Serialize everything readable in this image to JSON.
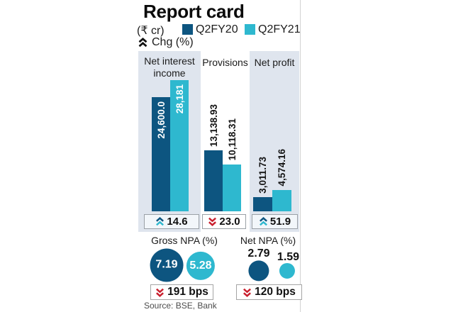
{
  "title": "Report card",
  "unit_label": "(₹ cr)",
  "legend": {
    "series": [
      {
        "label": "Q2FY20",
        "color": "#0d5580"
      },
      {
        "label": "Q2FY21",
        "color": "#2eb8cf"
      }
    ],
    "chg_label": "Chg (%)"
  },
  "colors": {
    "q2fy20_dark_blue": "#0d5580",
    "q2fy21_cyan": "#2eb8cf",
    "panel_background": "#dfe5ee",
    "negative_red": "#c9202e",
    "divider_gray": "#d2d2d2"
  },
  "chart_data": [
    {
      "type": "bar",
      "title": "Report card",
      "unit": "₹ cr",
      "legend_position": "top",
      "grid": false,
      "series": [
        {
          "name": "Q2FY20",
          "color": "#0d5580"
        },
        {
          "name": "Q2FY21",
          "color": "#2eb8cf"
        }
      ],
      "groups": [
        {
          "label": "Net interest income",
          "label_lines": [
            "Net interest",
            "income"
          ],
          "values": [
            24600.0,
            28181
          ],
          "value_labels": [
            "24,600.0",
            "28,181"
          ],
          "change": {
            "direction": "up",
            "value": "14.6"
          }
        },
        {
          "label": "Provisions",
          "values": [
            13138.93,
            10118.31
          ],
          "value_labels": [
            "13,138.93",
            "10,118.31"
          ],
          "change": {
            "direction": "down",
            "value": "23.0"
          }
        },
        {
          "label": "Net profit",
          "values": [
            3011.73,
            4574.16
          ],
          "value_labels": [
            "3,011.73",
            "4,574.16"
          ],
          "change": {
            "direction": "up",
            "value": "51.9"
          }
        }
      ]
    },
    {
      "type": "bubble",
      "title": "Gross NPA (%)",
      "series": [
        "Q2FY20",
        "Q2FY21"
      ],
      "values": [
        7.19,
        5.28
      ],
      "value_labels": [
        "7.19",
        "5.28"
      ],
      "change": {
        "direction": "down",
        "value": "191 bps"
      }
    },
    {
      "type": "bubble",
      "title": "Net NPA (%)",
      "series": [
        "Q2FY20",
        "Q2FY21"
      ],
      "values": [
        2.79,
        1.59
      ],
      "value_labels": [
        "2.79",
        "1.59"
      ],
      "change": {
        "direction": "down",
        "value": "120 bps"
      }
    }
  ],
  "source": "Source: BSE, Bank"
}
